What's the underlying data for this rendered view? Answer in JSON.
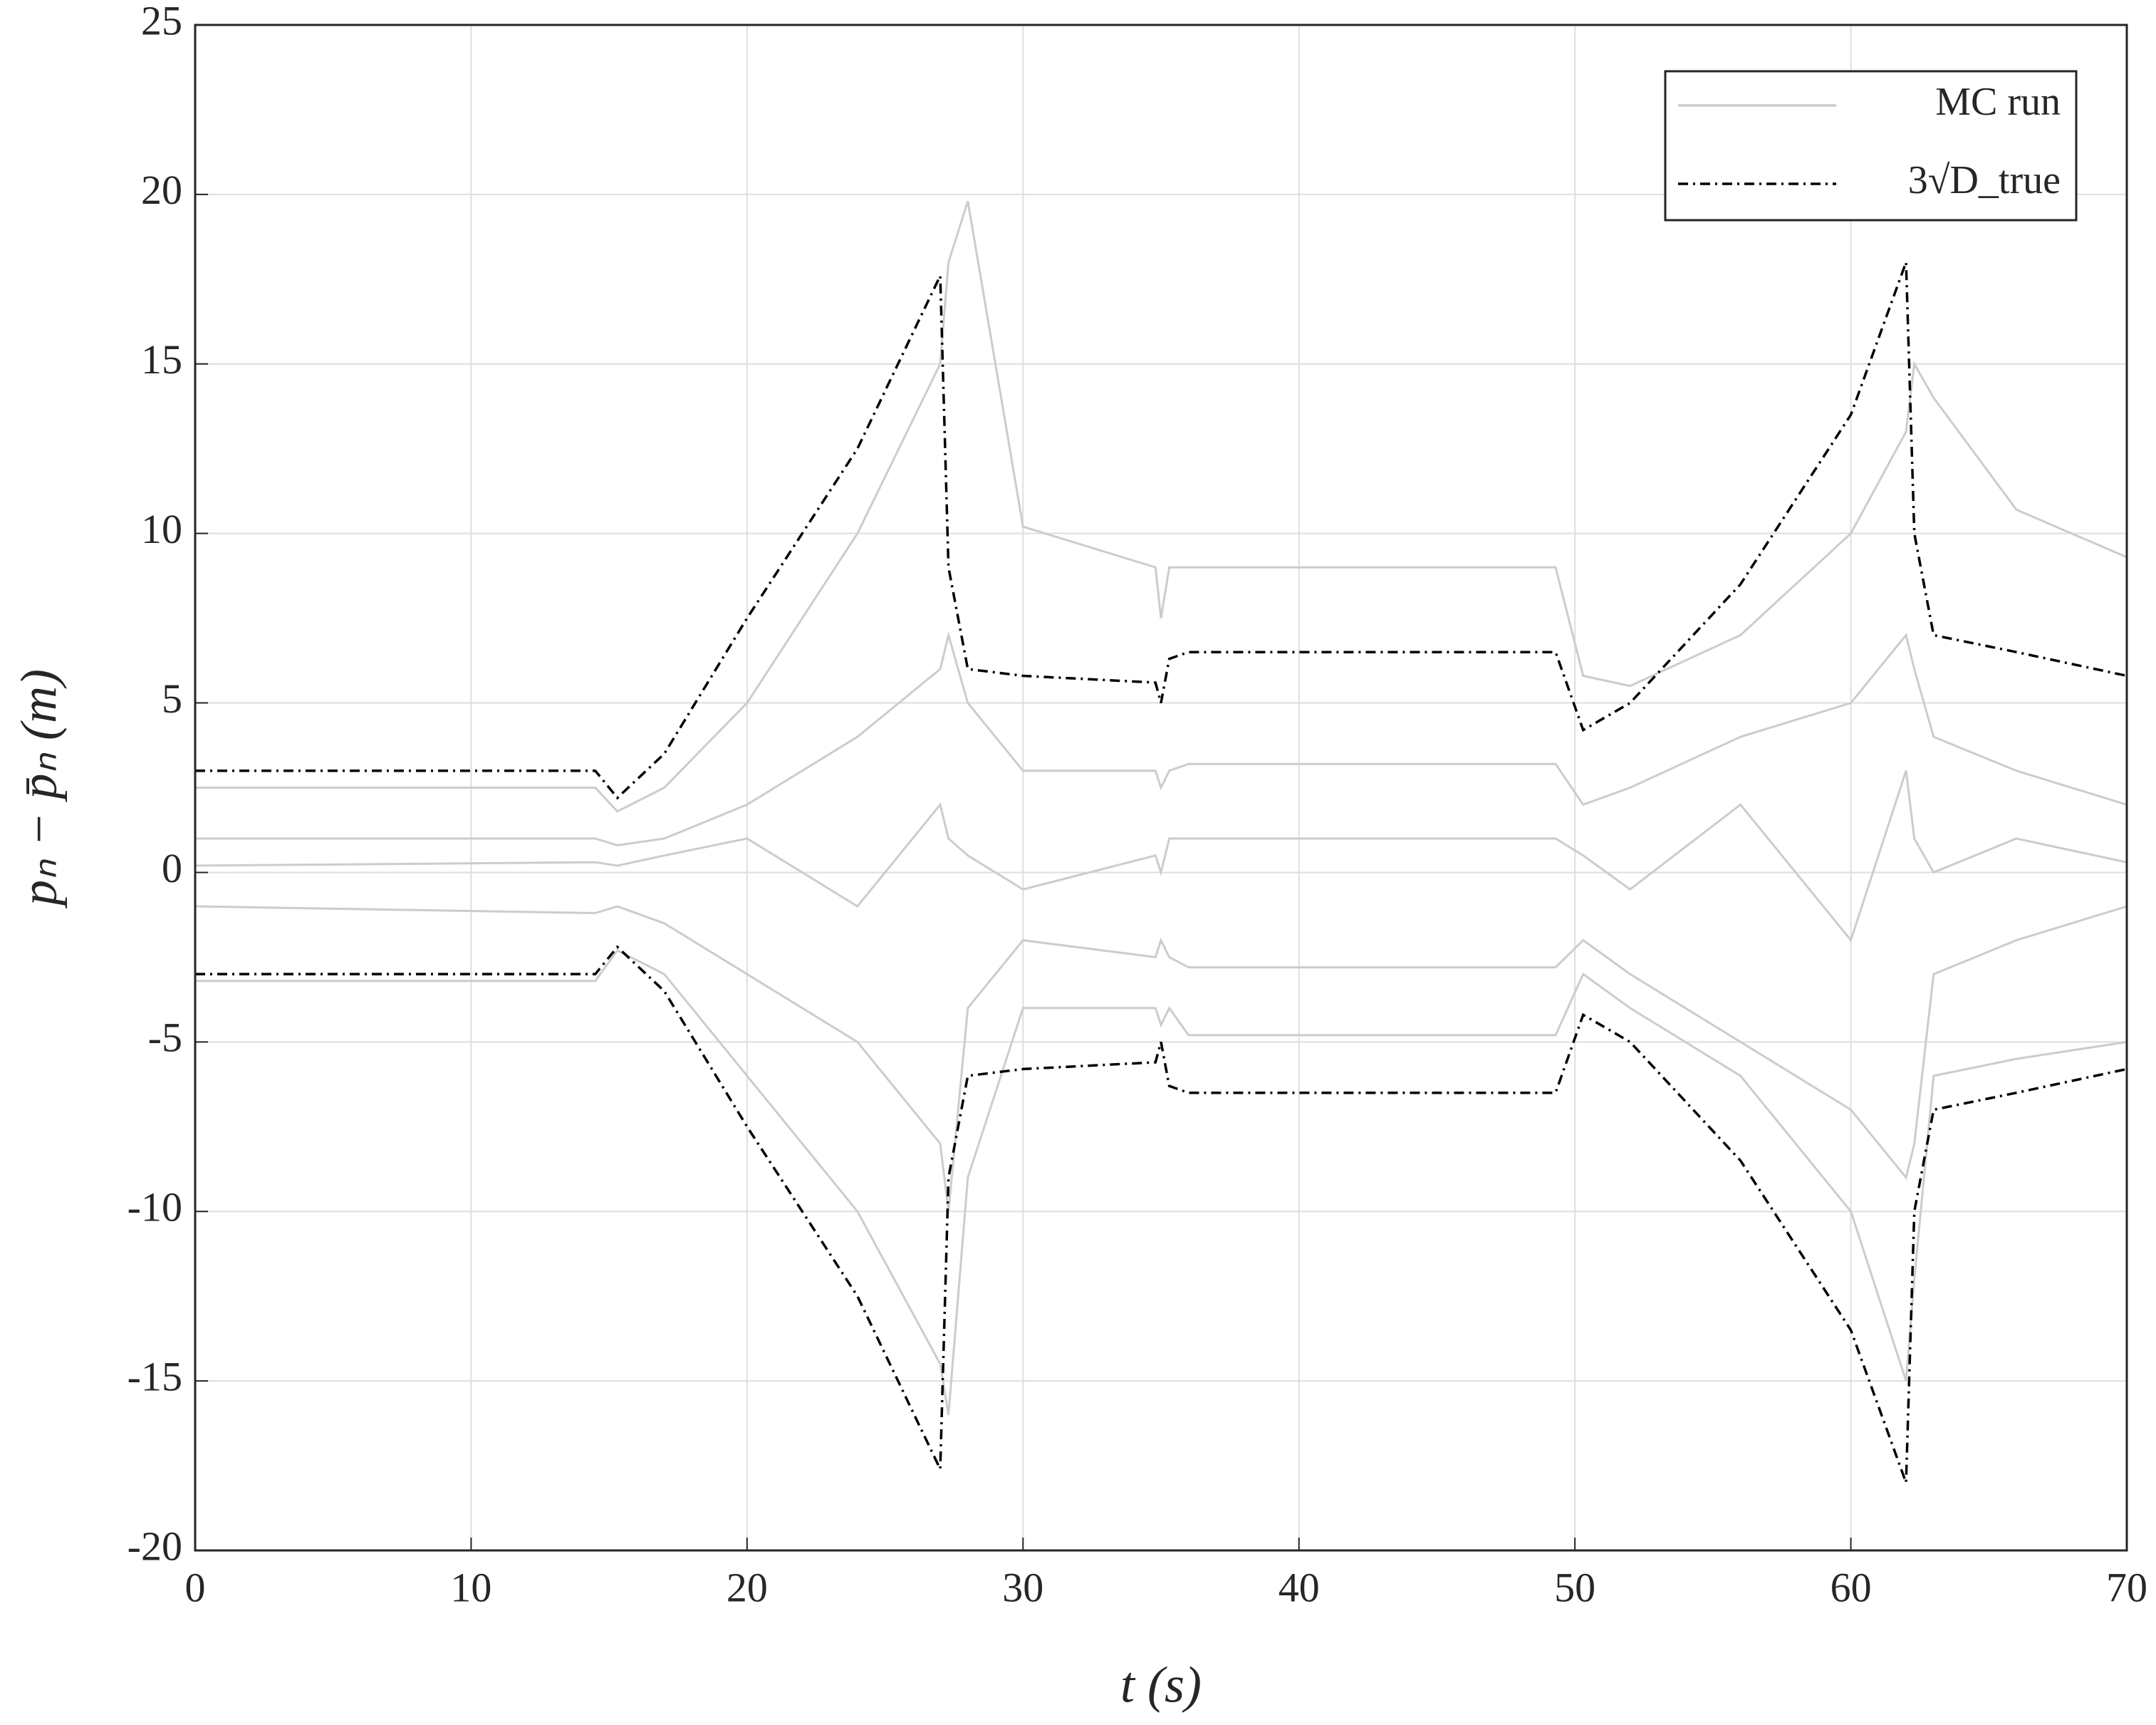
{
  "chart_data": {
    "type": "line",
    "x_label": "t (s)",
    "y_label": "pₙ − p̄ₙ (m)",
    "x": [
      0,
      14.5,
      15.3,
      17,
      20,
      24,
      27,
      27.3,
      28,
      30,
      34.8,
      35,
      35.3,
      36,
      40,
      49.3,
      50.3,
      52,
      56,
      60,
      62,
      62.3,
      63,
      66,
      70
    ],
    "series": [
      {
        "name": "MC run",
        "color": "#cccccc",
        "dash": "solid",
        "runs": [
          [
            2.5,
            2.5,
            1.8,
            2.5,
            5,
            10,
            15,
            18,
            19.8,
            10.2,
            9,
            7.5,
            9,
            9,
            9,
            9,
            5.8,
            5.5,
            7,
            10,
            13,
            15,
            14,
            10.7,
            9.3
          ],
          [
            -3.2,
            -3.2,
            -2.3,
            -3,
            -6,
            -10,
            -14.5,
            -16,
            -9,
            -4,
            -4,
            -4.5,
            -4,
            -4.8,
            -4.8,
            -4.8,
            -3,
            -4,
            -6,
            -10,
            -15,
            -12,
            -6,
            -5.5,
            -5
          ],
          [
            1,
            1,
            0.8,
            1,
            2,
            4,
            6,
            7,
            5,
            3,
            3,
            2.5,
            3,
            3.2,
            3.2,
            3.2,
            2,
            2.5,
            4,
            5,
            7,
            6,
            4,
            3,
            2
          ],
          [
            -1,
            -1.2,
            -1,
            -1.5,
            -3,
            -5,
            -8,
            -10,
            -4,
            -2,
            -2.5,
            -2,
            -2.5,
            -2.8,
            -2.8,
            -2.8,
            -2,
            -3,
            -5,
            -7,
            -9,
            -8,
            -3,
            -2,
            -1
          ],
          [
            0.2,
            0.3,
            0.2,
            0.5,
            1,
            -1,
            2,
            1,
            0.5,
            -0.5,
            0.5,
            0,
            1,
            1,
            1,
            1,
            0.5,
            -0.5,
            2,
            -2,
            3,
            1,
            0,
            1,
            0.3
          ]
        ]
      },
      {
        "name": "3√D_true",
        "color": "#000000",
        "dash": "dashdot",
        "values": [
          3,
          3,
          2.2,
          3.5,
          7.5,
          12.5,
          17.6,
          9,
          6,
          5.8,
          5.6,
          5,
          6.3,
          6.5,
          6.5,
          6.5,
          4.2,
          5,
          8.5,
          13.5,
          18,
          10,
          7,
          6.5,
          5.8
        ],
        "lower": [
          -3,
          -3,
          -2.2,
          -3.5,
          -7.5,
          -12.5,
          -17.6,
          -9,
          -6,
          -5.8,
          -5.6,
          -5,
          -6.3,
          -6.5,
          -6.5,
          -6.5,
          -4.2,
          -5,
          -8.5,
          -13.5,
          -18,
          -10,
          -7,
          -6.5,
          -5.8
        ]
      }
    ],
    "xlim": [
      0,
      70
    ],
    "xticks": [
      0,
      10,
      20,
      30,
      40,
      50,
      60,
      70
    ],
    "ylim": [
      -20,
      25
    ],
    "yticks": [
      -20,
      -15,
      -10,
      -5,
      0,
      5,
      10,
      15,
      20,
      25
    ],
    "grid": true,
    "legend": "upper right"
  }
}
